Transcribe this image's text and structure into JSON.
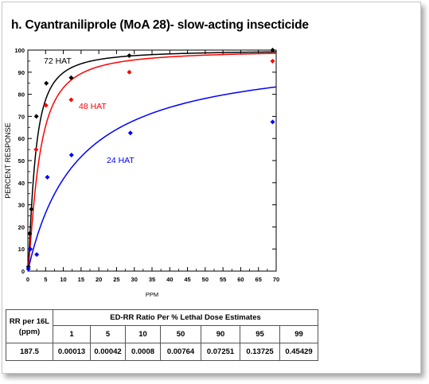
{
  "title": "h. Cyantraniliprole (MoA 28)- slow-acting insecticide",
  "chart_data": {
    "type": "scatter",
    "ylabel": "PERCENT RESPONSE",
    "xlabel": "PPM",
    "xlim": [
      0,
      70
    ],
    "ylim": [
      0,
      100
    ],
    "x_ticks": [
      "0",
      "5",
      "10",
      "15",
      "20",
      "25",
      "30",
      "35",
      "40",
      "45",
      "50",
      "55",
      "60",
      "65",
      "70"
    ],
    "y_ticks": [
      "0",
      "10",
      "20",
      "30",
      "40",
      "50",
      "60",
      "70",
      "80",
      "90",
      "100"
    ],
    "series": [
      {
        "name": "72 HAT",
        "color": "#000000",
        "points": [
          [
            0.13,
            2
          ],
          [
            0.5,
            17
          ],
          [
            1.0,
            28
          ],
          [
            2.4,
            70
          ],
          [
            5.2,
            85
          ],
          [
            12.2,
            87.5
          ],
          [
            28.6,
            97.5
          ],
          [
            69.0,
            100
          ]
        ],
        "curve_ec50": 2.0,
        "curve_slope": 1.35
      },
      {
        "name": "48 HAT",
        "color": "#ff0000",
        "points": [
          [
            2.3,
            55
          ],
          [
            5.1,
            75
          ],
          [
            12.2,
            77.5
          ],
          [
            28.6,
            90
          ],
          [
            69.0,
            95
          ]
        ],
        "curve_ec50": 3.1,
        "curve_slope": 1.35
      },
      {
        "name": "24 HAT",
        "color": "#0000ff",
        "points": [
          [
            0.13,
            1
          ],
          [
            0.7,
            10
          ],
          [
            2.5,
            7.5
          ],
          [
            5.5,
            42.5
          ],
          [
            12.3,
            52.5
          ],
          [
            28.9,
            62.5
          ],
          [
            69.0,
            67.5
          ]
        ],
        "curve_ec50": 14.0,
        "curve_slope": 1.0
      }
    ]
  },
  "table": {
    "header_label": "RR per 16L\n(ppm)",
    "group_header": "ED-RR  Ratio Per % Lethal Dose Estimates",
    "columns": [
      "1",
      "5",
      "10",
      "50",
      "90",
      "95",
      "99"
    ],
    "rr_value": "187.5",
    "values": [
      "0.00013",
      "0.00042",
      "0.0008",
      "0.00764",
      "0.07251",
      "0.13725",
      "0.45429"
    ]
  }
}
